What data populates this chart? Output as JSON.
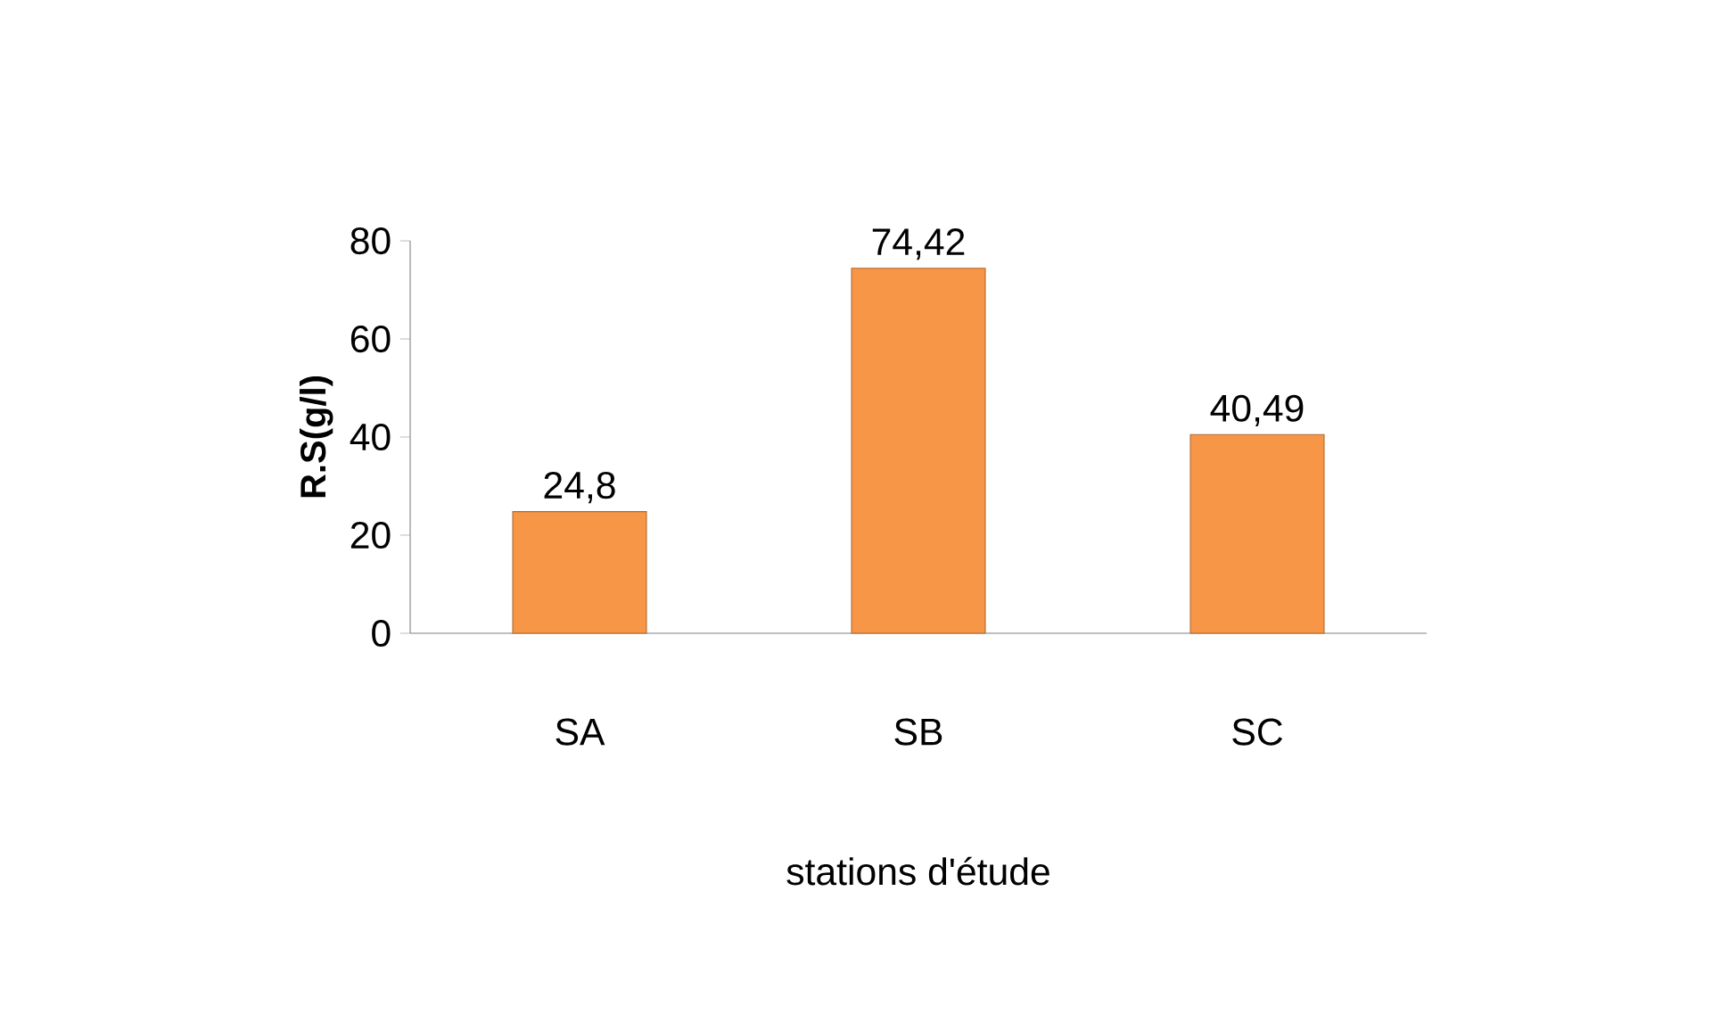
{
  "chart_data": {
    "type": "bar",
    "xlabel": "stations d'étude",
    "ylabel": "R.S(g/l)",
    "categories": [
      "SA",
      "SB",
      "SC"
    ],
    "values": [
      24.8,
      74.42,
      40.49
    ],
    "value_labels": [
      "24,8",
      "74,42",
      "40,49"
    ],
    "color": "#f79646",
    "ylim": [
      0,
      80
    ],
    "yticks": [
      0,
      20,
      40,
      60,
      80
    ]
  }
}
